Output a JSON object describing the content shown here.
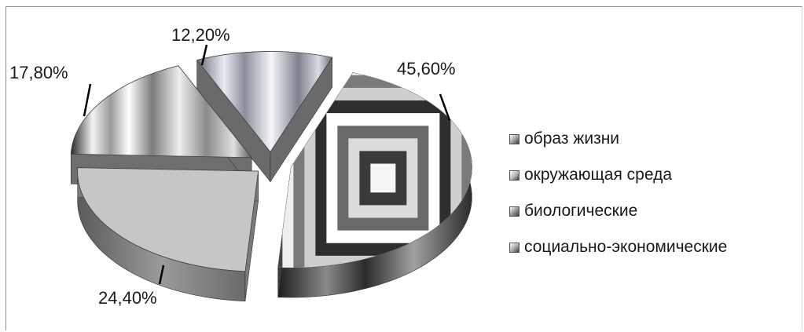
{
  "chart_data": {
    "type": "pie",
    "style": "3d-exploded",
    "categories": [
      "образ жизни",
      "окружающая среда",
      "биологические",
      "социально-экономические"
    ],
    "values": [
      45.6,
      24.4,
      17.8,
      12.2
    ],
    "data_labels": [
      "45,60%",
      "24,40%",
      "17,80%",
      "12,20%"
    ],
    "legend_position": "right",
    "title": ""
  },
  "colors": {
    "slice_fill": [
      "#e8e8e8",
      "#c6c6c6",
      "#bdbdbd",
      "#c8ccd8"
    ],
    "slice_side": [
      "#3c3c3c",
      "#7a7a7a",
      "#6e6e6e",
      "#6a6a6a"
    ],
    "legend_swatch": [
      "#9a9a9a",
      "#b5b5b5",
      "#8f8f8f",
      "#a8a8a8"
    ],
    "leader": "#000000"
  }
}
